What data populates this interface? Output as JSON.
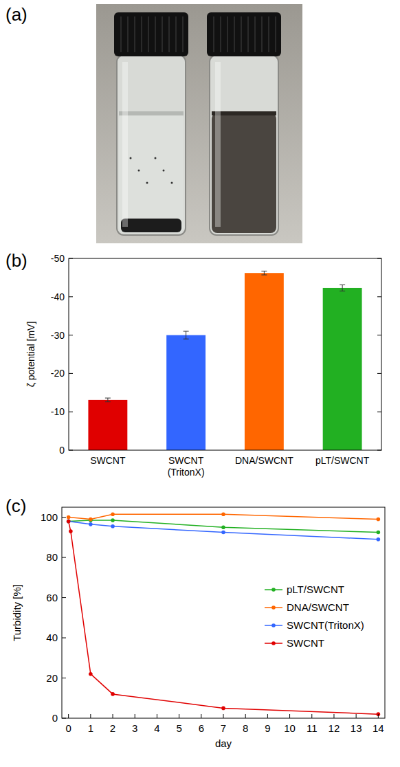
{
  "chart_data": [
    {
      "type": "image",
      "panel": "(a)"
    },
    {
      "type": "bar",
      "panel": "(b)",
      "y_label": "ζ potential [mV]",
      "categories": [
        "SWCNT",
        "SWCNT\n(TritonX)",
        "DNA/SWCNT",
        "pLT/SWCNT"
      ],
      "values": [
        -13.1,
        -30.0,
        -46.2,
        -42.3
      ],
      "errors": [
        0.5,
        1.0,
        0.5,
        0.8
      ],
      "colors": [
        "#e00000",
        "#3366ff",
        "#ff6600",
        "#22b022"
      ],
      "ylim": [
        0,
        -50
      ],
      "yticks": [
        0,
        -10,
        -20,
        -30,
        -40,
        -50
      ],
      "grid": false
    },
    {
      "type": "line",
      "panel": "(c)",
      "x_label": "day",
      "y_label": "Turbidity [%]",
      "xlim": [
        -0.3,
        14.3
      ],
      "xticks": [
        0,
        1,
        2,
        3,
        4,
        5,
        6,
        7,
        8,
        9,
        10,
        11,
        12,
        13,
        14
      ],
      "ylim": [
        0,
        105
      ],
      "yticks": [
        0,
        20,
        40,
        60,
        80,
        100
      ],
      "grid": false,
      "legend": "right",
      "series": [
        {
          "name": "pLT/SWCNT",
          "color": "#22b022",
          "marker": "circle",
          "x": [
            0,
            1,
            2,
            7,
            14
          ],
          "values": [
            98,
            98.5,
            98.5,
            95,
            92.5
          ]
        },
        {
          "name": "DNA/SWCNT",
          "color": "#ff6600",
          "marker": "circle",
          "x": [
            0,
            1,
            2,
            7,
            14
          ],
          "values": [
            100,
            99,
            101.5,
            101.5,
            99
          ]
        },
        {
          "name": "SWCNT(TritonX)",
          "color": "#3366ff",
          "marker": "circle",
          "x": [
            0,
            1,
            2,
            7,
            14
          ],
          "values": [
            98,
            96.5,
            95.5,
            92.5,
            89
          ]
        },
        {
          "name": "SWCNT",
          "color": "#e00000",
          "marker": "circle",
          "x": [
            0,
            0.1,
            1,
            2,
            7,
            14
          ],
          "values": [
            98,
            93,
            22,
            12,
            5,
            2
          ]
        }
      ]
    }
  ]
}
